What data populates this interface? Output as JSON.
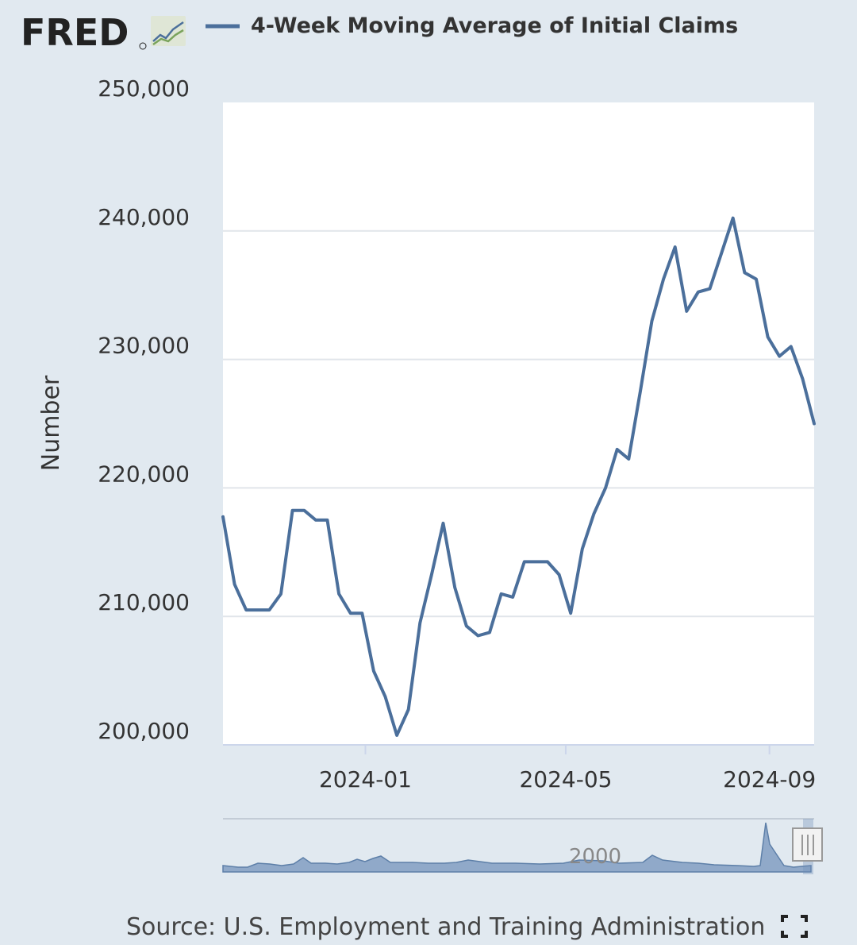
{
  "header": {
    "logo_text": "FRED",
    "legend_label": "4-Week Moving Average of Initial Claims"
  },
  "footer": {
    "source": "Source: U.S. Employment and Training Administration"
  },
  "navigator": {
    "year_label": "2000"
  },
  "colors": {
    "series": "#4b6f9b",
    "background": "#e1e9f0",
    "plot_background": "#ffffff",
    "gridline": "#e1e5ea",
    "navigator_fill": "#90a9c9"
  },
  "icons": {
    "logo_chart": "fred-chart-icon",
    "fullscreen": "fullscreen-icon",
    "navigator_handle": "navigator-handle-icon"
  },
  "chart_data": {
    "type": "line",
    "title": "",
    "xlabel": "",
    "ylabel": "Number",
    "ylim": [
      200000,
      250000
    ],
    "y_ticks": [
      "200,000",
      "210,000",
      "220,000",
      "230,000",
      "240,000",
      "250,000"
    ],
    "x_ticks": [
      "2024-01",
      "2024-05",
      "2024-09"
    ],
    "grid": true,
    "legend": "top",
    "series": [
      {
        "name": "4-Week Moving Average of Initial Claims",
        "x": [
          "2023-10-07",
          "2023-10-14",
          "2023-10-21",
          "2023-10-28",
          "2023-11-04",
          "2023-11-11",
          "2023-11-18",
          "2023-11-25",
          "2023-12-02",
          "2023-12-09",
          "2023-12-16",
          "2023-12-23",
          "2023-12-30",
          "2024-01-06",
          "2024-01-13",
          "2024-01-20",
          "2024-01-27",
          "2024-02-03",
          "2024-02-10",
          "2024-02-17",
          "2024-02-24",
          "2024-03-02",
          "2024-03-09",
          "2024-03-16",
          "2024-03-23",
          "2024-03-30",
          "2024-04-06",
          "2024-04-13",
          "2024-04-20",
          "2024-04-27",
          "2024-05-04",
          "2024-05-11",
          "2024-05-18",
          "2024-05-25",
          "2024-06-01",
          "2024-06-08",
          "2024-06-15",
          "2024-06-22",
          "2024-06-29",
          "2024-07-06",
          "2024-07-13",
          "2024-07-20",
          "2024-07-27",
          "2024-08-03",
          "2024-08-10",
          "2024-08-17",
          "2024-08-24",
          "2024-08-31",
          "2024-09-07",
          "2024-09-14",
          "2024-09-21",
          "2024-09-28"
        ],
        "values": [
          217750,
          212500,
          210500,
          210500,
          210500,
          211750,
          218250,
          218250,
          217500,
          217500,
          211750,
          210250,
          210250,
          205750,
          203750,
          200750,
          202750,
          209500,
          213250,
          217250,
          212250,
          209250,
          208500,
          208750,
          211750,
          211500,
          214250,
          214250,
          214250,
          213250,
          210250,
          215250,
          218000,
          220000,
          223000,
          222250,
          227500,
          233000,
          236250,
          238750,
          233750,
          235250,
          235500,
          238250,
          241000,
          236750,
          236250,
          231750,
          230250,
          231000,
          228500,
          225000
        ]
      }
    ]
  }
}
